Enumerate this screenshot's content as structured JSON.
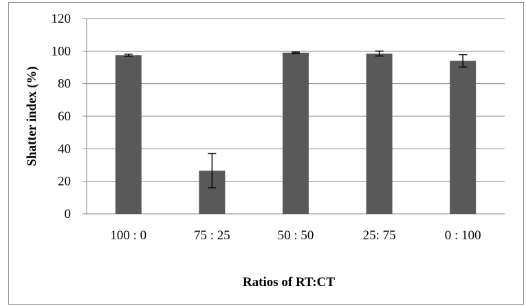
{
  "chart_data": {
    "type": "bar",
    "categories": [
      "100 : 0",
      "75 : 25",
      "50 : 50",
      "25: 75",
      "0 : 100"
    ],
    "values": [
      97.5,
      26.5,
      99,
      98.5,
      94
    ],
    "errors": [
      0.6,
      10.5,
      0.4,
      1.5,
      3.8
    ],
    "xlabel": "Ratios of RT:CT",
    "ylabel": "Shatter index (%)",
    "ylim": [
      0,
      120
    ],
    "yticks": [
      "0",
      "20",
      "40",
      "60",
      "80",
      "100",
      "120"
    ],
    "grid": true,
    "bar_color": "#595959",
    "grid_color": "#868686"
  }
}
